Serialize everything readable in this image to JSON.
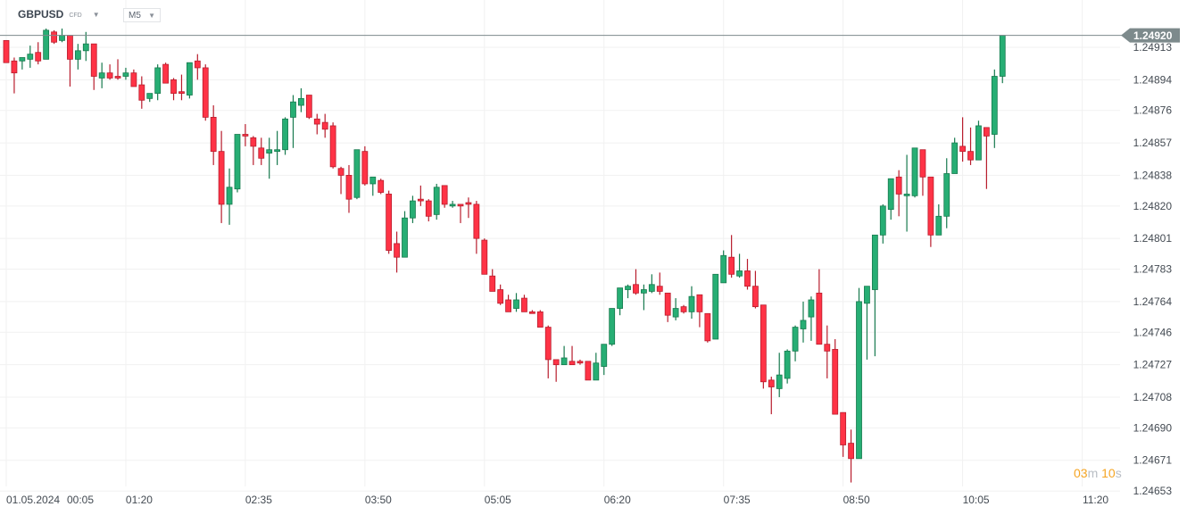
{
  "header": {
    "symbol": "GBPUSD",
    "instrument_type": "CFD",
    "timeframe": "M5"
  },
  "countdown": {
    "minutes": "03",
    "minutes_unit": "m",
    "seconds": "10",
    "seconds_unit": "s"
  },
  "colors": {
    "up": "#27ae74",
    "up_border": "#177a4e",
    "down": "#ff3346",
    "down_border": "#b81d2d",
    "price_line": "#7d8a8c",
    "grid": "#f1f1f1",
    "countdown": "#f5a524"
  },
  "chart_data": {
    "type": "candlestick",
    "title": "GBPUSD CFD",
    "timeframe": "M5",
    "date": "01.05.2024",
    "current_price": 1.2492,
    "current_price_label": "1.24920",
    "ylim": [
      1.2465,
      1.2493
    ],
    "yticks": [
      "1.24913",
      "1.24894",
      "1.24876",
      "1.24857",
      "1.24838",
      "1.24820",
      "1.24801",
      "1.24783",
      "1.24764",
      "1.24746",
      "1.24727",
      "1.24708",
      "1.24690",
      "1.24671",
      "1.24653"
    ],
    "xticks": [
      "00:05",
      "01:20",
      "02:35",
      "03:50",
      "05:05",
      "06:20",
      "07:35",
      "08:50",
      "10:05",
      "11:20"
    ],
    "candles_ohlc": [
      [
        1.24917,
        1.24917,
        1.24904,
        1.24904
      ],
      [
        1.24905,
        1.24907,
        1.24886,
        1.24898
      ],
      [
        1.24905,
        1.24907,
        1.249,
        1.24907
      ],
      [
        1.24906,
        1.24914,
        1.24901,
        1.24909
      ],
      [
        1.2491,
        1.24916,
        1.24903,
        1.24905
      ],
      [
        1.24906,
        1.24924,
        1.24906,
        1.24923
      ],
      [
        1.24922,
        1.24923,
        1.24915,
        1.24916
      ],
      [
        1.24917,
        1.24924,
        1.24916,
        1.2492
      ],
      [
        1.2492,
        1.2492,
        1.2489,
        1.24906
      ],
      [
        1.24906,
        1.24915,
        1.249,
        1.24911
      ],
      [
        1.24911,
        1.24922,
        1.24905,
        1.24915
      ],
      [
        1.24915,
        1.24915,
        1.24888,
        1.24896
      ],
      [
        1.24895,
        1.24904,
        1.24889,
        1.24898
      ],
      [
        1.24898,
        1.24903,
        1.24894,
        1.24895
      ],
      [
        1.24896,
        1.24906,
        1.24894,
        1.24895
      ],
      [
        1.24896,
        1.24901,
        1.24894,
        1.24898
      ],
      [
        1.24898,
        1.249,
        1.2489,
        1.2489
      ],
      [
        1.24891,
        1.24896,
        1.24877,
        1.24882
      ],
      [
        1.24883,
        1.24886,
        1.24881,
        1.24886
      ],
      [
        1.24886,
        1.24903,
        1.24882,
        1.24901
      ],
      [
        1.24903,
        1.24904,
        1.24892,
        1.24892
      ],
      [
        1.24894,
        1.24895,
        1.24882,
        1.24886
      ],
      [
        1.24887,
        1.24897,
        1.24882,
        1.24886
      ],
      [
        1.24885,
        1.24904,
        1.24883,
        1.24904
      ],
      [
        1.24905,
        1.24909,
        1.24894,
        1.24901
      ],
      [
        1.24901,
        1.24903,
        1.2487,
        1.24872
      ],
      [
        1.24872,
        1.24879,
        1.24844,
        1.24852
      ],
      [
        1.24852,
        1.24864,
        1.2481,
        1.24821
      ],
      [
        1.24821,
        1.24842,
        1.24809,
        1.24831
      ],
      [
        1.2483,
        1.24862,
        1.24828,
        1.24862
      ],
      [
        1.24862,
        1.24868,
        1.24855,
        1.24861
      ],
      [
        1.2486,
        1.24861,
        1.24844,
        1.24855
      ],
      [
        1.24854,
        1.2486,
        1.24844,
        1.24848
      ],
      [
        1.24851,
        1.2486,
        1.24836,
        1.24853
      ],
      [
        1.24852,
        1.24864,
        1.24844,
        1.24853
      ],
      [
        1.24853,
        1.24872,
        1.2485,
        1.24871
      ],
      [
        1.24872,
        1.24885,
        1.24854,
        1.24881
      ],
      [
        1.24879,
        1.24889,
        1.24875,
        1.24883
      ],
      [
        1.24885,
        1.24885,
        1.24871,
        1.24872
      ],
      [
        1.24871,
        1.24874,
        1.24862,
        1.24868
      ],
      [
        1.24869,
        1.24874,
        1.2486,
        1.24865
      ],
      [
        1.24867,
        1.24869,
        1.24842,
        1.24843
      ],
      [
        1.24842,
        1.24843,
        1.24827,
        1.24838
      ],
      [
        1.24838,
        1.24844,
        1.24816,
        1.24824
      ],
      [
        1.24825,
        1.24853,
        1.24824,
        1.24853
      ],
      [
        1.24852,
        1.24855,
        1.24832,
        1.24833
      ],
      [
        1.24833,
        1.24837,
        1.24826,
        1.24837
      ],
      [
        1.24835,
        1.24836,
        1.24827,
        1.24828
      ],
      [
        1.24827,
        1.24829,
        1.24792,
        1.24794
      ],
      [
        1.24798,
        1.24805,
        1.24781,
        1.2479
      ],
      [
        1.2479,
        1.24817,
        1.2479,
        1.24813
      ],
      [
        1.24813,
        1.24826,
        1.2481,
        1.24823
      ],
      [
        1.24824,
        1.24832,
        1.2482,
        1.24823
      ],
      [
        1.24823,
        1.24824,
        1.24811,
        1.24814
      ],
      [
        1.24815,
        1.24833,
        1.24812,
        1.24831
      ],
      [
        1.24832,
        1.24832,
        1.24819,
        1.24821
      ],
      [
        1.2482,
        1.24823,
        1.24819,
        1.24821
      ],
      [
        1.24821,
        1.24821,
        1.2481,
        1.2482
      ],
      [
        1.24822,
        1.24825,
        1.24813,
        1.24821
      ],
      [
        1.24821,
        1.24823,
        1.24792,
        1.24801
      ],
      [
        1.248,
        1.24801,
        1.2478,
        1.2478
      ],
      [
        1.24779,
        1.24783,
        1.2477,
        1.2477
      ],
      [
        1.24771,
        1.24774,
        1.24762,
        1.24763
      ],
      [
        1.24765,
        1.24768,
        1.24758,
        1.24758
      ],
      [
        1.2476,
        1.24769,
        1.24758,
        1.24765
      ],
      [
        1.24766,
        1.24768,
        1.24758,
        1.24758
      ],
      [
        1.24758,
        1.24759,
        1.24757,
        1.24757
      ],
      [
        1.24758,
        1.24759,
        1.24749,
        1.24749
      ],
      [
        1.24749,
        1.2475,
        1.24719,
        1.2473
      ],
      [
        1.2473,
        1.2473,
        1.24717,
        1.24727
      ],
      [
        1.24727,
        1.24738,
        1.24727,
        1.24731
      ],
      [
        1.24729,
        1.24738,
        1.24727,
        1.24727
      ],
      [
        1.24729,
        1.2473,
        1.24727,
        1.24728
      ],
      [
        1.24729,
        1.24729,
        1.24718,
        1.24718
      ],
      [
        1.24718,
        1.24734,
        1.24718,
        1.24728
      ],
      [
        1.24726,
        1.24739,
        1.24721,
        1.24739
      ],
      [
        1.24739,
        1.2476,
        1.24738,
        1.2476
      ],
      [
        1.2476,
        1.24772,
        1.24756,
        1.24772
      ],
      [
        1.24771,
        1.24774,
        1.24766,
        1.24773
      ],
      [
        1.24774,
        1.24783,
        1.24768,
        1.24769
      ],
      [
        1.24769,
        1.24774,
        1.24759,
        1.24771
      ],
      [
        1.2477,
        1.2478,
        1.24769,
        1.24774
      ],
      [
        1.24773,
        1.24781,
        1.24768,
        1.2477
      ],
      [
        1.24769,
        1.24769,
        1.24752,
        1.24756
      ],
      [
        1.24755,
        1.24766,
        1.24753,
        1.2476
      ],
      [
        1.24761,
        1.24762,
        1.24757,
        1.24758
      ],
      [
        1.24758,
        1.24773,
        1.24754,
        1.24767
      ],
      [
        1.24768,
        1.24768,
        1.24749,
        1.24758
      ],
      [
        1.24757,
        1.24757,
        1.2474,
        1.24741
      ],
      [
        1.24742,
        1.2478,
        1.24742,
        1.2478
      ],
      [
        1.24775,
        1.24794,
        1.24775,
        1.24791
      ],
      [
        1.2479,
        1.24803,
        1.24778,
        1.2478
      ],
      [
        1.24779,
        1.24792,
        1.24778,
        1.24782
      ],
      [
        1.24782,
        1.24789,
        1.24771,
        1.24773
      ],
      [
        1.24773,
        1.24782,
        1.2476,
        1.24761
      ],
      [
        1.24762,
        1.24762,
        1.24713,
        1.24717
      ],
      [
        1.24718,
        1.2472,
        1.24698,
        1.24714
      ],
      [
        1.24713,
        1.24734,
        1.24708,
        1.24721
      ],
      [
        1.24719,
        1.24736,
        1.24716,
        1.24735
      ],
      [
        1.24735,
        1.2475,
        1.24729,
        1.24749
      ],
      [
        1.24748,
        1.24764,
        1.2474,
        1.24753
      ],
      [
        1.24755,
        1.24767,
        1.24741,
        1.24765
      ],
      [
        1.24769,
        1.24783,
        1.24739,
        1.24739
      ],
      [
        1.24739,
        1.2475,
        1.24719,
        1.24735
      ],
      [
        1.24736,
        1.24742,
        1.24698,
        1.24698
      ],
      [
        1.24699,
        1.24699,
        1.24673,
        1.2468
      ],
      [
        1.24681,
        1.24689,
        1.24658,
        1.24672
      ],
      [
        1.24672,
        1.24772,
        1.24672,
        1.24764
      ],
      [
        1.24763,
        1.24773,
        1.2473,
        1.24773
      ],
      [
        1.24771,
        1.24803,
        1.24732,
        1.24803
      ],
      [
        1.24803,
        1.24821,
        1.24798,
        1.2482
      ],
      [
        1.24818,
        1.24836,
        1.24812,
        1.24836
      ],
      [
        1.24837,
        1.24841,
        1.24814,
        1.24827
      ],
      [
        1.24826,
        1.2485,
        1.24805,
        1.24827
      ],
      [
        1.24826,
        1.24854,
        1.24825,
        1.24854
      ],
      [
        1.24853,
        1.24853,
        1.24826,
        1.24837
      ],
      [
        1.24837,
        1.24837,
        1.24796,
        1.24803
      ],
      [
        1.24803,
        1.24821,
        1.24803,
        1.24814
      ],
      [
        1.24814,
        1.24848,
        1.24807,
        1.24839
      ],
      [
        1.24839,
        1.2486,
        1.24839,
        1.24857
      ],
      [
        1.24855,
        1.24872,
        1.24846,
        1.24852
      ],
      [
        1.24852,
        1.24866,
        1.24844,
        1.24847
      ],
      [
        1.24847,
        1.2487,
        1.24847,
        1.24867
      ],
      [
        1.24866,
        1.24866,
        1.2483,
        1.24861
      ],
      [
        1.24862,
        1.249,
        1.24854,
        1.24896
      ],
      [
        1.24896,
        1.2492,
        1.24892,
        1.2492
      ]
    ]
  }
}
